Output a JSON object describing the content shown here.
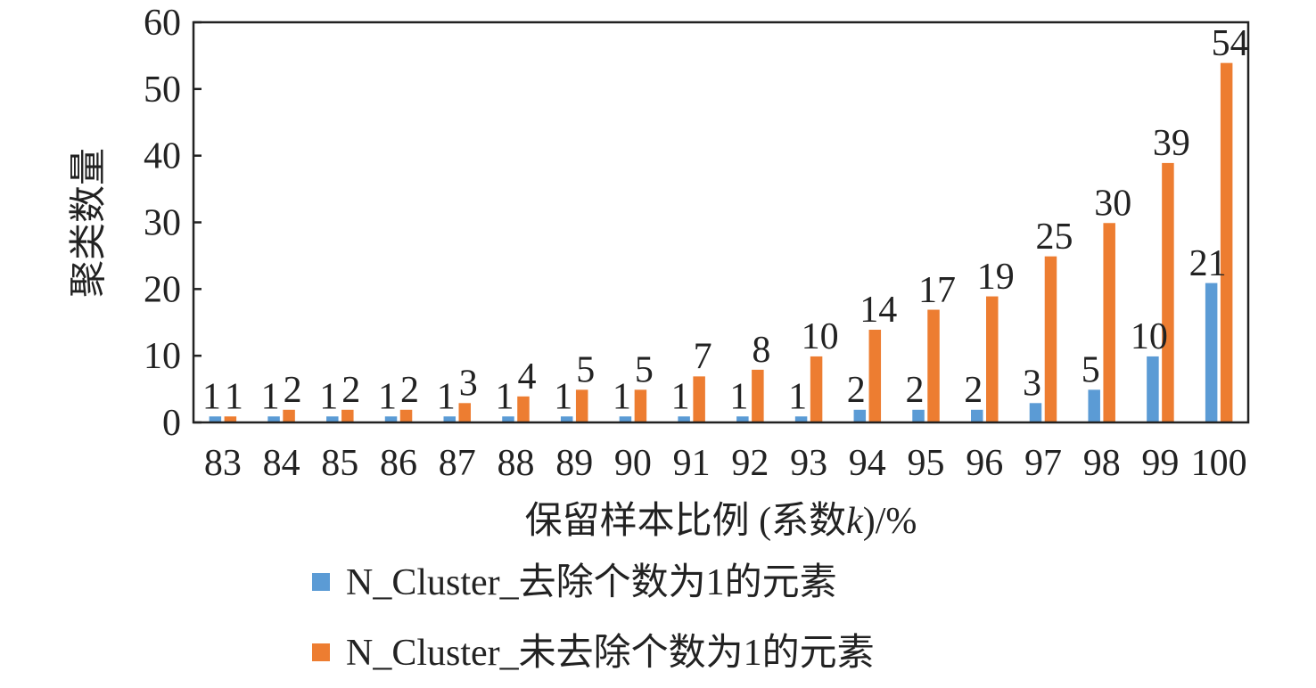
{
  "chart_data": {
    "type": "bar",
    "title": "",
    "xlabel": "保留样本比例 (系数k)/%",
    "xlabel_parts": [
      "保留样本比例 (系数",
      "k",
      ")/%"
    ],
    "ylabel": "聚类数量",
    "ylim": [
      0,
      60
    ],
    "yticks": [
      0,
      10,
      20,
      30,
      40,
      50,
      60
    ],
    "grid": false,
    "legend_position": "bottom",
    "categories": [
      "83",
      "84",
      "85",
      "86",
      "87",
      "88",
      "89",
      "90",
      "91",
      "92",
      "93",
      "94",
      "95",
      "96",
      "97",
      "98",
      "99",
      "100"
    ],
    "series": [
      {
        "name": "N_Cluster_去除个数为1的元素",
        "color": "#5b9bd5",
        "values": [
          1,
          1,
          1,
          1,
          1,
          1,
          1,
          1,
          1,
          1,
          1,
          2,
          2,
          2,
          3,
          5,
          10,
          21
        ]
      },
      {
        "name": "N_Cluster_未去除个数为1的元素",
        "color": "#ed7d31",
        "values": [
          1,
          2,
          2,
          2,
          3,
          4,
          5,
          5,
          7,
          8,
          10,
          14,
          17,
          19,
          25,
          30,
          39,
          54
        ]
      }
    ]
  }
}
